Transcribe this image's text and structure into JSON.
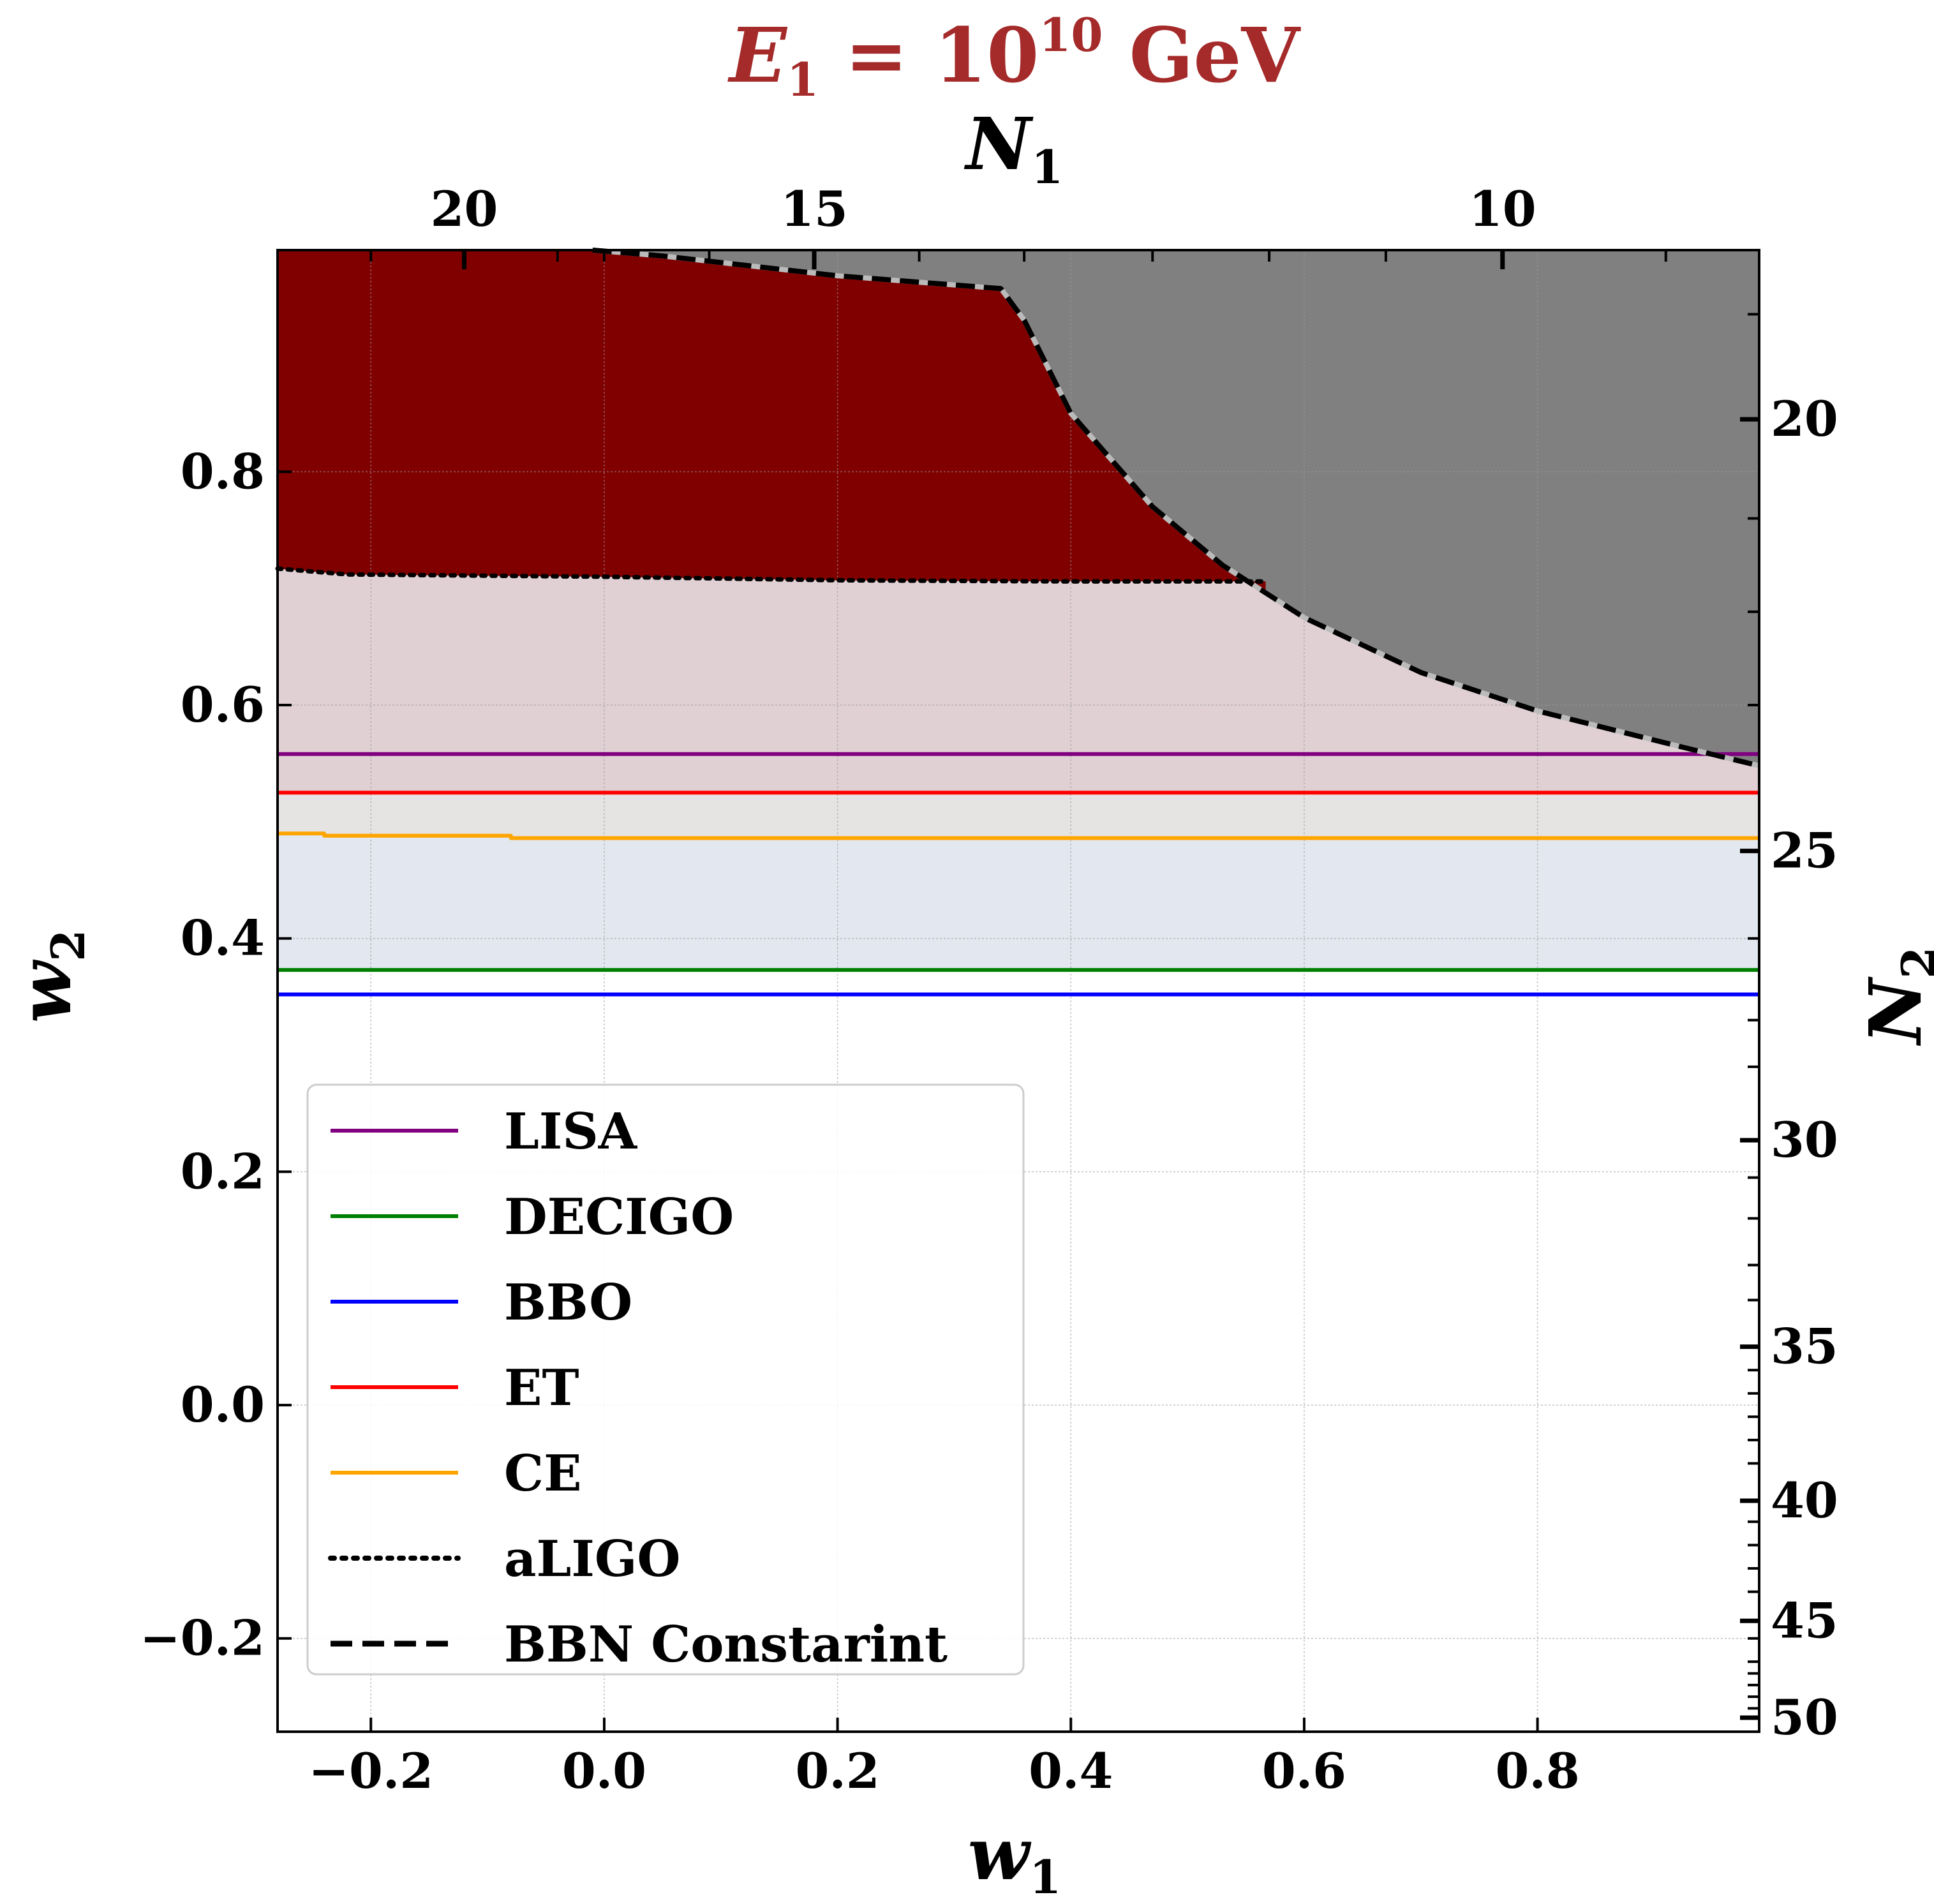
{
  "chart_data": {
    "type": "line",
    "title": {
      "symbol": "E",
      "subscript": "1",
      "equals": " = ",
      "base": "10",
      "exponent": "10",
      "unit": " GeV",
      "color": "#a52a2a"
    },
    "xlabel": {
      "symbol": "w",
      "subscript": "1"
    },
    "ylabel": {
      "symbol": "w",
      "subscript": "2"
    },
    "top_xlabel": {
      "symbol": "N",
      "subscript": "1"
    },
    "right_ylabel": {
      "symbol": "N",
      "subscript": "2"
    },
    "xlim": [
      -0.28,
      0.99
    ],
    "ylim": [
      -0.28,
      0.99
    ],
    "xticks": [
      -0.2,
      0.0,
      0.2,
      0.4,
      0.6,
      0.8
    ],
    "xtick_labels": [
      "−0.2",
      "0.0",
      "0.2",
      "0.4",
      "0.6",
      "0.8"
    ],
    "yticks": [
      -0.2,
      0.0,
      0.2,
      0.4,
      0.6,
      0.8
    ],
    "ytick_labels": [
      "−0.2",
      "0.0",
      "0.2",
      "0.4",
      "0.6",
      "0.8"
    ],
    "top_ticks": [
      {
        "w1": -0.12,
        "label": "20"
      },
      {
        "w1": 0.18,
        "label": "15"
      },
      {
        "w1": 0.77,
        "label": "10"
      }
    ],
    "top_minor_ticks_w1": [
      -0.2,
      -0.04,
      0.0,
      0.09,
      0.27,
      0.36,
      0.47,
      0.57,
      0.67,
      0.91
    ],
    "right_ticks": [
      {
        "w2": 0.845,
        "label": "20"
      },
      {
        "w2": 0.475,
        "label": "25"
      },
      {
        "w2": 0.227,
        "label": "30"
      },
      {
        "w2": 0.05,
        "label": "35"
      },
      {
        "w2": -0.082,
        "label": "40"
      },
      {
        "w2": -0.185,
        "label": "45"
      },
      {
        "w2": -0.268,
        "label": "50"
      }
    ],
    "right_minor_ticks_w2": [
      0.935,
      0.76,
      0.68,
      0.6,
      0.4,
      0.33,
      0.29,
      0.195,
      0.16,
      0.12,
      0.09,
      0.03,
      0.01,
      -0.01,
      -0.03,
      -0.05,
      -0.1,
      -0.12,
      -0.14,
      -0.16,
      -0.2,
      -0.22,
      -0.23,
      -0.24,
      -0.25,
      -0.26
    ],
    "grid": true,
    "series": [
      {
        "name": "LISA",
        "color": "#800080",
        "style": "solid",
        "x": [
          -0.28,
          0.99
        ],
        "y": [
          0.558,
          0.558
        ]
      },
      {
        "name": "DECIGO",
        "color": "#008000",
        "style": "solid",
        "x": [
          -0.28,
          0.99
        ],
        "y": [
          0.373,
          0.373
        ]
      },
      {
        "name": "BBO",
        "color": "#0000ff",
        "style": "solid",
        "x": [
          -0.28,
          0.99
        ],
        "y": [
          0.352,
          0.352
        ]
      },
      {
        "name": "ET",
        "color": "#ff0000",
        "style": "solid",
        "x": [
          -0.28,
          0.99
        ],
        "y": [
          0.525,
          0.525
        ]
      },
      {
        "name": "CE",
        "color": "#ffa500",
        "style": "solid",
        "x": [
          -0.28,
          -0.24,
          -0.24,
          -0.08,
          -0.08,
          0.99
        ],
        "y": [
          0.49,
          0.49,
          0.488,
          0.488,
          0.486,
          0.486
        ]
      },
      {
        "name": "aLIGO",
        "color": "#000000",
        "style": "dotted",
        "x": [
          -0.28,
          -0.22,
          0.0,
          0.2,
          0.4,
          0.567
        ],
        "y": [
          0.717,
          0.712,
          0.71,
          0.707,
          0.706,
          0.706
        ]
      },
      {
        "name": "BBN Constarint",
        "color": "#000000",
        "style": "dashed",
        "x": [
          -0.01,
          0.05,
          0.2,
          0.34,
          0.36,
          0.4,
          0.47,
          0.53,
          0.6,
          0.7,
          0.8,
          0.92,
          0.99
        ],
        "y": [
          0.99,
          0.985,
          0.968,
          0.957,
          0.93,
          0.85,
          0.77,
          0.72,
          0.675,
          0.628,
          0.595,
          0.565,
          0.548
        ]
      }
    ],
    "regions": [
      {
        "name": "excluded-bbn",
        "color": "#808080",
        "description": "above BBN curve"
      },
      {
        "name": "aligo-detectable",
        "color": "#800000"
      },
      {
        "name": "lisa-band",
        "color": "#e0d0d4"
      },
      {
        "name": "et-band",
        "color": "#e6e4e3"
      },
      {
        "name": "ce-band",
        "color": "#e3e8f0"
      }
    ],
    "legend": {
      "position": "lower left",
      "entries": [
        "LISA",
        "DECIGO",
        "BBO",
        "ET",
        "CE",
        "aLIGO",
        "BBN Constarint"
      ]
    }
  }
}
